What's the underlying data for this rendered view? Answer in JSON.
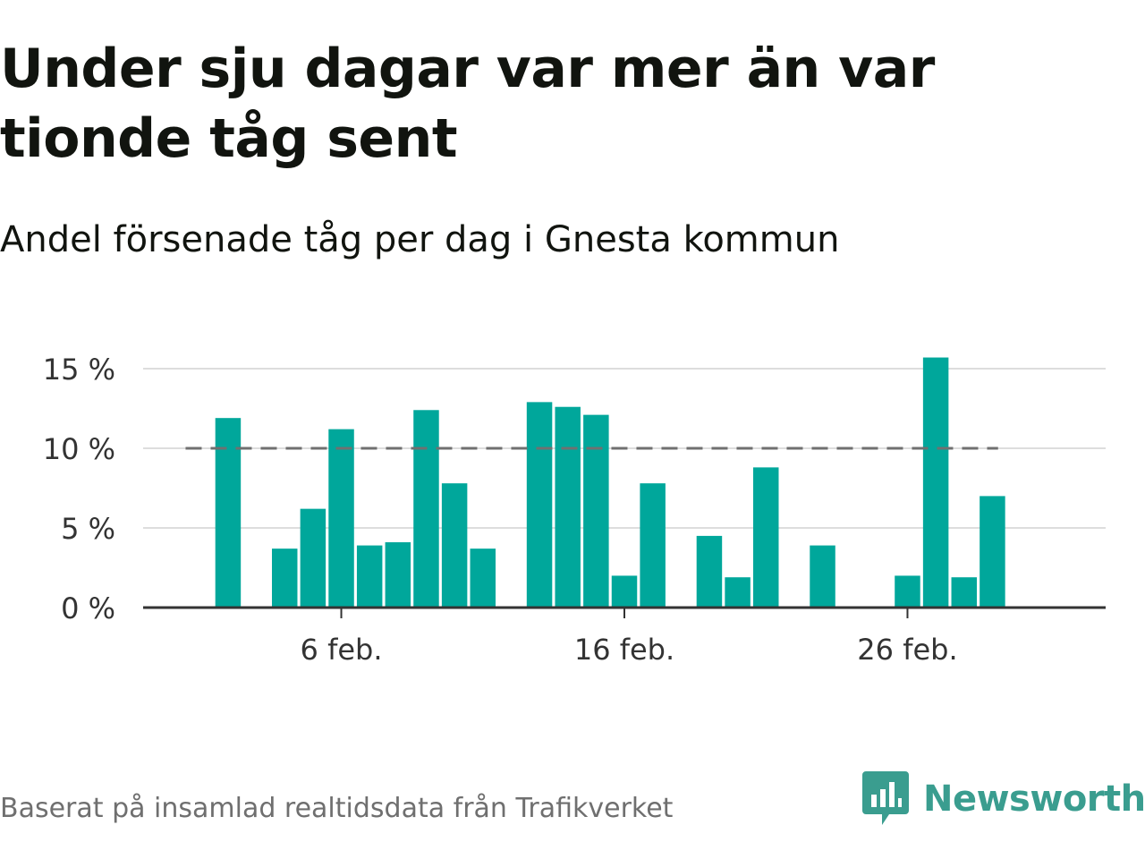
{
  "title": "Under sju dagar var mer än var tionde tåg sent",
  "subtitle": "Andel försenade tåg per dag i Gnesta kommun",
  "footer": {
    "source": "Baserat på insamlad realtidsdata från Trafikverket",
    "brand": "Newsworthy"
  },
  "colors": {
    "bar": "#00a79b",
    "reference_line": "#707070",
    "grid": "#dddddd",
    "axis": "#333333",
    "brand": "#3a9d8f"
  },
  "icons": {
    "brand_logo": "newsworthy-logo-icon"
  },
  "chart_data": {
    "type": "bar",
    "xlabel": "",
    "ylabel": "",
    "x_range": [
      "2020-01-30",
      "2020-03-04"
    ],
    "ylim": [
      0,
      15
    ],
    "y_ticks": [
      0,
      5,
      10,
      15
    ],
    "y_tick_labels": [
      "0 %",
      "5 %",
      "10 %",
      "15 %"
    ],
    "x_ticks": [
      "2020-02-06",
      "2020-02-16",
      "2020-02-26"
    ],
    "x_tick_labels": [
      "6 feb.",
      "16 feb.",
      "26 feb."
    ],
    "grid": true,
    "reference_line": 10,
    "x": [
      "2020-02-02",
      "2020-02-03",
      "2020-02-04",
      "2020-02-05",
      "2020-02-06",
      "2020-02-07",
      "2020-02-08",
      "2020-02-09",
      "2020-02-10",
      "2020-02-11",
      "2020-02-12",
      "2020-02-13",
      "2020-02-14",
      "2020-02-15",
      "2020-02-16",
      "2020-02-17",
      "2020-02-18",
      "2020-02-19",
      "2020-02-20",
      "2020-02-21",
      "2020-02-22",
      "2020-02-23",
      "2020-02-24",
      "2020-02-25",
      "2020-02-26",
      "2020-02-27",
      "2020-02-28",
      "2020-02-29"
    ],
    "values": [
      11.9,
      0,
      3.7,
      6.2,
      11.2,
      3.9,
      4.1,
      12.4,
      7.8,
      3.7,
      0,
      12.9,
      12.6,
      12.1,
      2.0,
      7.8,
      0,
      4.5,
      1.9,
      8.8,
      0,
      3.9,
      0,
      0,
      2.0,
      15.7,
      1.9,
      7.0
    ]
  }
}
